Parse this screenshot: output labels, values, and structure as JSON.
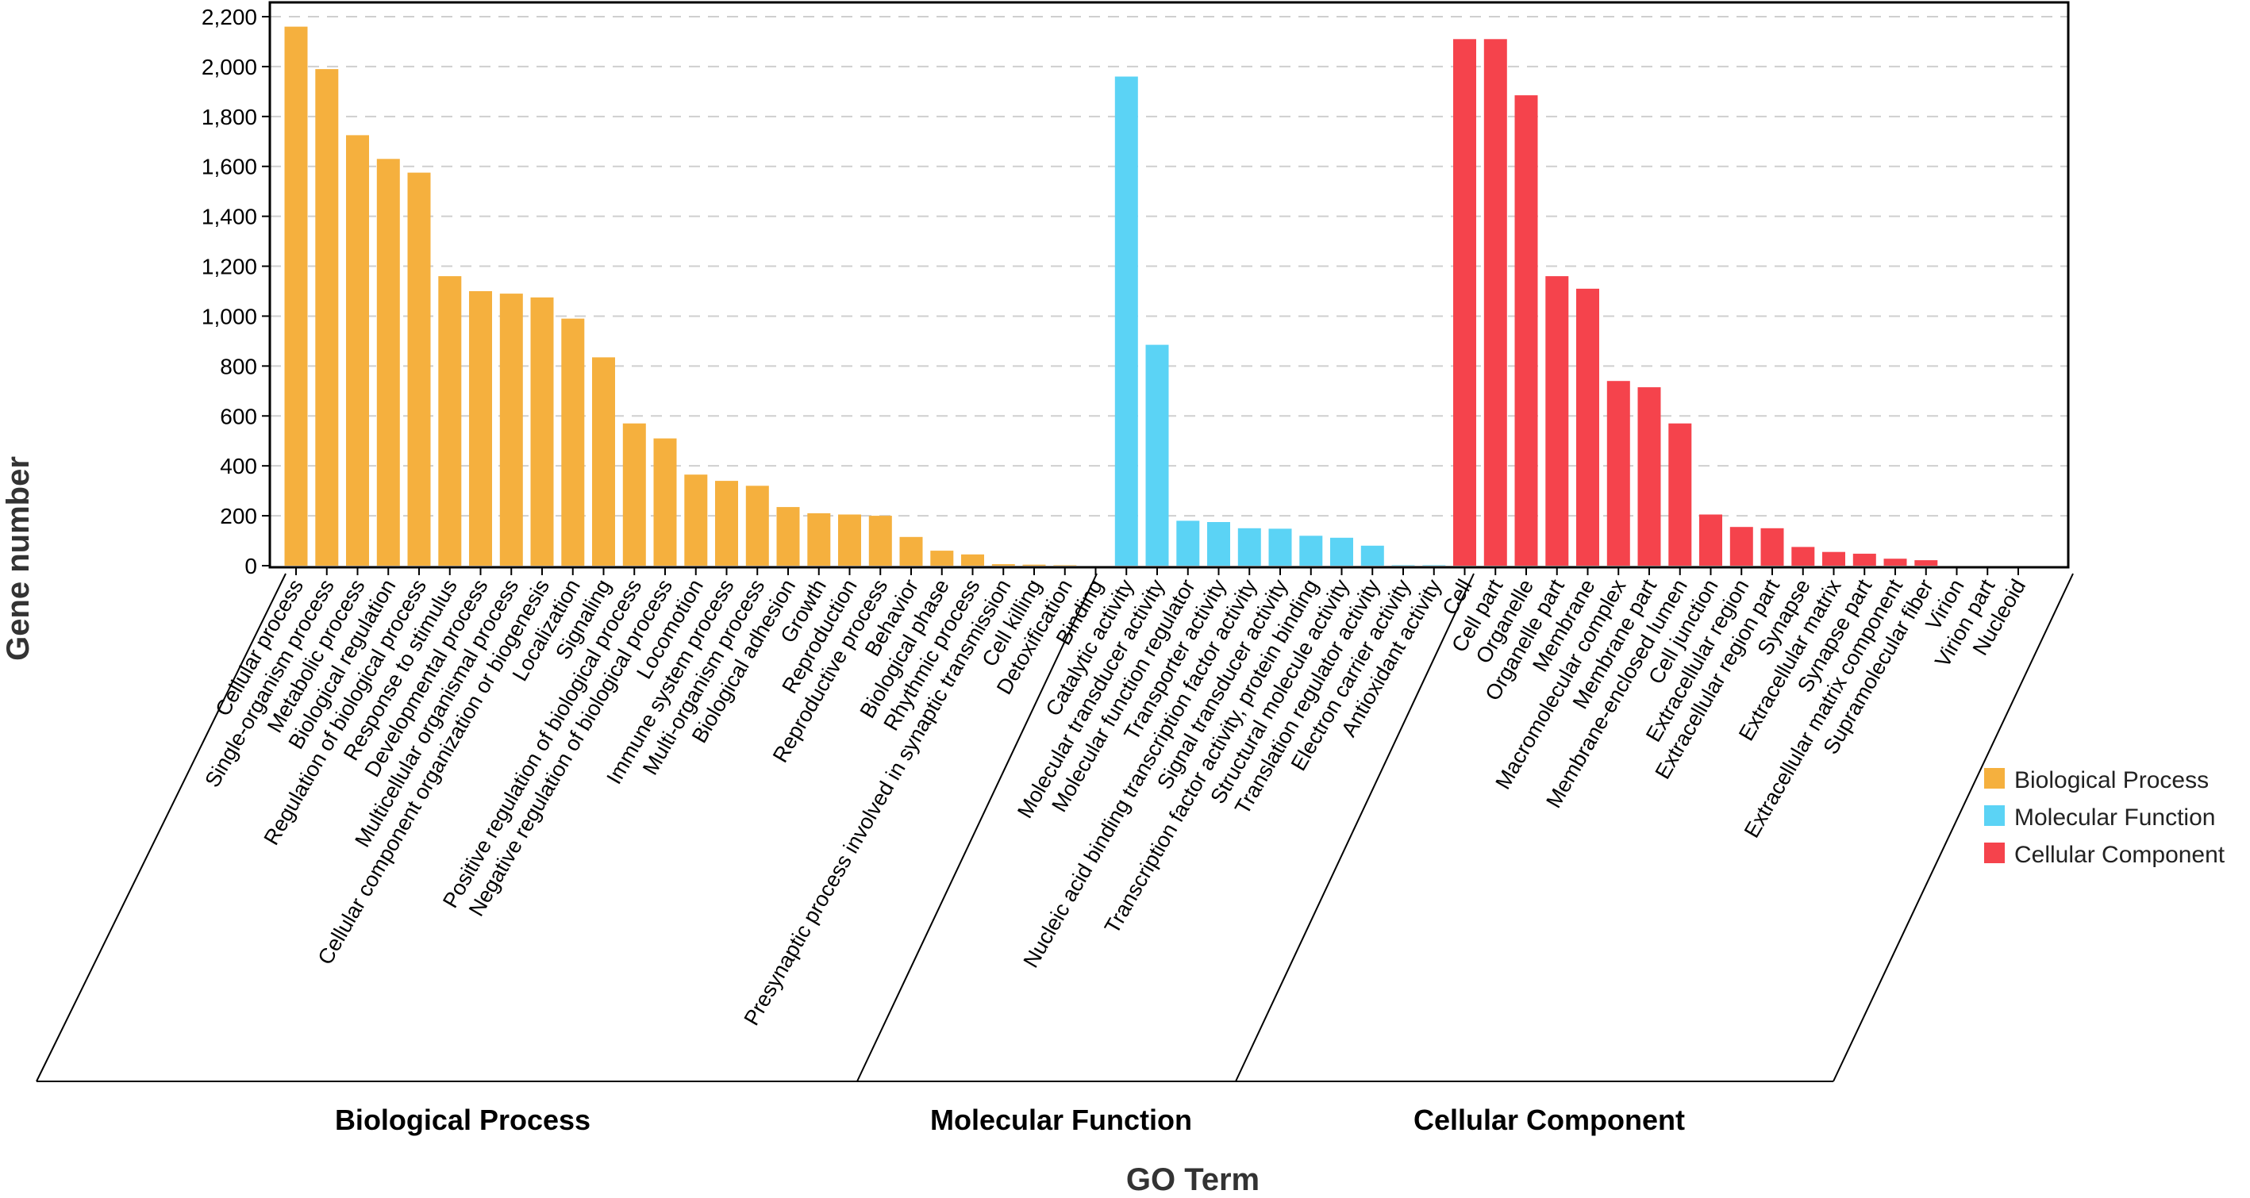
{
  "chart_data": {
    "type": "bar",
    "title": "",
    "xlabel": "GO Term",
    "ylabel": "Gene number",
    "ylim": [
      0,
      2200
    ],
    "yticks": [
      0,
      200,
      400,
      600,
      800,
      1000,
      1200,
      1400,
      1600,
      1800,
      2000,
      2200
    ],
    "ytick_labels": [
      "0",
      "200",
      "400",
      "600",
      "800",
      "1,000",
      "1,200",
      "1,400",
      "1,600",
      "1,800",
      "2,000",
      "2,200"
    ],
    "grid": true,
    "legend_position": "right",
    "groups": [
      {
        "name": "Biological Process",
        "color": "#F5B03E",
        "categories": [
          "Cellular process",
          "Single-organism process",
          "Metabolic process",
          "Biological regulation",
          "Regulation of biological process",
          "Response to stimulus",
          "Developmental process",
          "Multicellular organismal process",
          "Cellular component organization or biogenesis",
          "Localization",
          "Signaling",
          "Positive regulation of biological process",
          "Negative regulation of biological process",
          "Locomotion",
          "Immune system process",
          "Multi-organism process",
          "Biological adhesion",
          "Growth",
          "Reproduction",
          "Reproductive process",
          "Behavior",
          "Biological phase",
          "Rhythmic process",
          "Presynaptic process involved in synaptic transmission",
          "Cell killing",
          "Detoxification"
        ],
        "values": [
          2160,
          1990,
          1725,
          1630,
          1575,
          1160,
          1100,
          1090,
          1075,
          990,
          835,
          570,
          510,
          365,
          340,
          320,
          235,
          210,
          205,
          200,
          115,
          60,
          45,
          6,
          4,
          2
        ]
      },
      {
        "name": "Molecular Function",
        "color": "#5BD3F5",
        "categories": [
          "Binding",
          "Catalytic activity",
          "Molecular transducer activity",
          "Molecular function regulator",
          "Transporter activity",
          "Nucleic acid binding transcription factor activity",
          "Signal transducer activity",
          "Transcription factor activity, protein binding",
          "Structural molecule activity",
          "Translation regulator activity",
          "Electron carrier activity",
          "Antioxidant activity"
        ],
        "values": [
          0,
          1960,
          885,
          180,
          175,
          150,
          148,
          120,
          112,
          80,
          2,
          2
        ]
      },
      {
        "name": "Cellular Component",
        "color": "#F5434C",
        "categories": [
          "Cell",
          "Cell part",
          "Organelle",
          "Organelle part",
          "Membrane",
          "Macromolecular complex",
          "Membrane part",
          "Membrane-enclosed lumen",
          "Cell junction",
          "Extracellular region",
          "Extracellular region part",
          "Synapse",
          "Extracellular matrix",
          "Synapse part",
          "Extracellular matrix component",
          "Supramolecular fiber",
          "Virion",
          "Virion part",
          "Nucleoid"
        ],
        "values": [
          2110,
          2110,
          1885,
          1160,
          1110,
          740,
          715,
          570,
          205,
          155,
          150,
          75,
          55,
          48,
          28,
          22,
          0,
          0,
          0
        ]
      }
    ]
  }
}
